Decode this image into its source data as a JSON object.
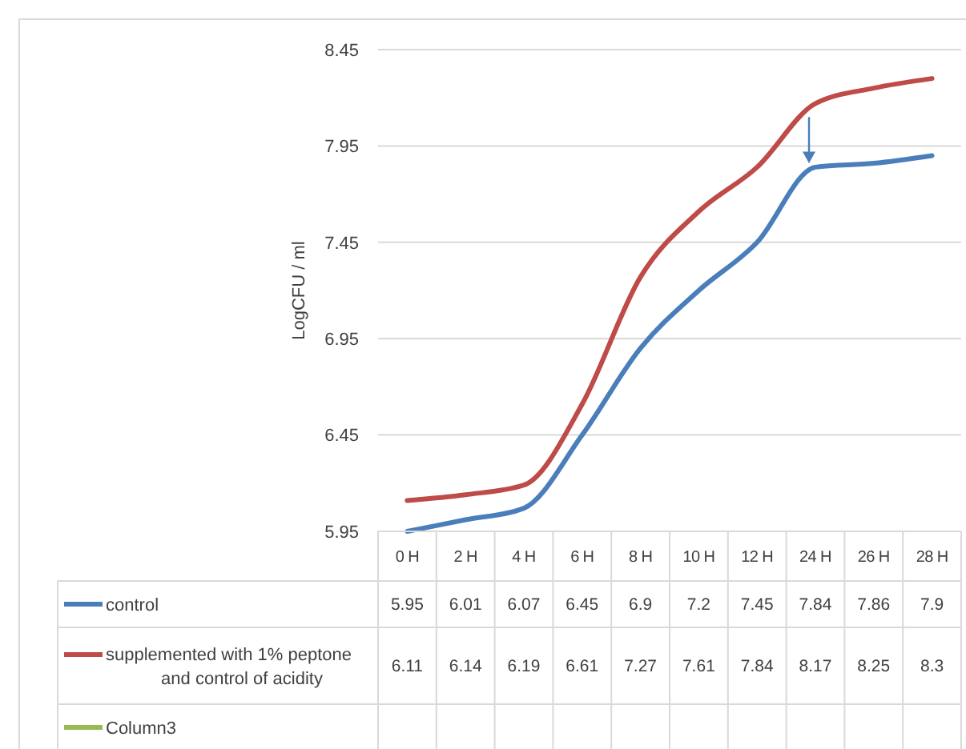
{
  "chart_data": {
    "type": "line",
    "ylabel": "LogCFU / ml",
    "categories": [
      "0 H",
      "2 H",
      "4 H",
      "6 H",
      "8 H",
      "10 H",
      "12 H",
      "24 H",
      "26 H",
      "28 H"
    ],
    "series": [
      {
        "name": "control",
        "color": "#4a7ebb",
        "values": [
          5.95,
          6.01,
          6.07,
          6.45,
          6.9,
          7.2,
          7.45,
          7.84,
          7.86,
          7.9
        ]
      },
      {
        "name": "supplemented with 1% peptone and control of acidity",
        "color": "#be4b48",
        "values": [
          6.11,
          6.14,
          6.19,
          6.61,
          7.27,
          7.61,
          7.84,
          8.17,
          8.25,
          8.3
        ]
      },
      {
        "name": "Column3",
        "color": "#98b954",
        "values": [
          null,
          null,
          null,
          null,
          null,
          null,
          null,
          null,
          null,
          null
        ]
      }
    ],
    "ylim": [
      5.95,
      8.45
    ],
    "yticks": [
      5.95,
      6.45,
      6.95,
      7.45,
      7.95,
      8.45
    ],
    "grid": "y",
    "legend": "bottom",
    "data_labels": true,
    "line_style": "solid"
  }
}
